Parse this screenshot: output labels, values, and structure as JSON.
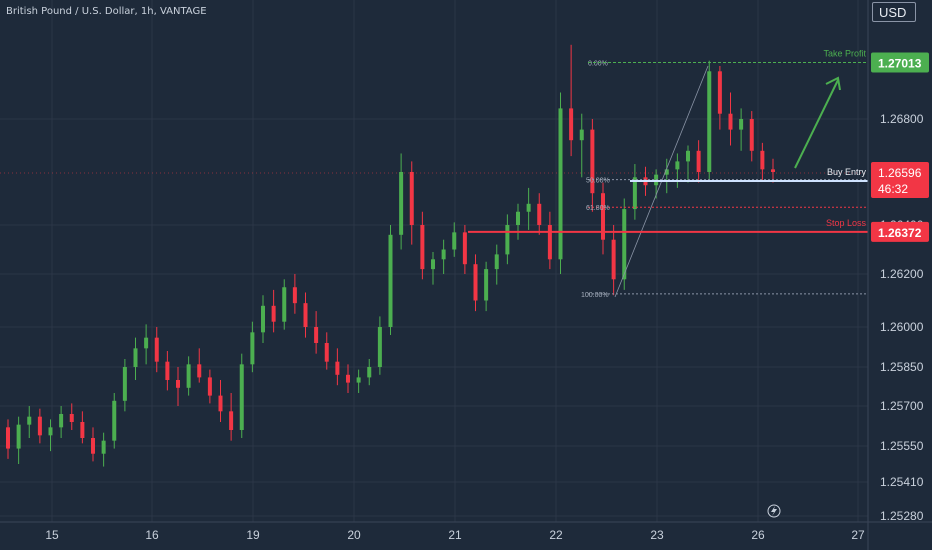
{
  "header": {
    "symbol_title": "British Pound / U.S. Dollar, 1h, VANTAGE",
    "currency": "USD"
  },
  "colors": {
    "background": "#1e2a3a",
    "up": "#4caf50",
    "down": "#f23645",
    "tp": "#4caf50",
    "sl": "#f23645",
    "entry": "#cfe3ff",
    "grid": "#2b3647"
  },
  "icons": {
    "bolt": "lightning-icon"
  },
  "chart_data": {
    "type": "candlestick",
    "x_ticks": [
      "15",
      "16",
      "19",
      "20",
      "21",
      "22",
      "23",
      "26",
      "27"
    ],
    "y_ticks": [
      "1.26800",
      "1.26400",
      "1.26200",
      "1.26000",
      "1.25850",
      "1.25700",
      "1.25550",
      "1.25410",
      "1.25280"
    ],
    "ylim": [
      1.2528,
      1.2712
    ],
    "levels": {
      "take_profit": {
        "label": "Take Profit",
        "price": "1.27013"
      },
      "buy_entry": {
        "label": "Buy Entry",
        "price": "1.26596",
        "countdown": "46:32"
      },
      "stop_loss": {
        "label": "Stop Loss",
        "price": "1.26372"
      }
    },
    "fib": [
      {
        "label": "0.00%",
        "price": 1.27013
      },
      {
        "label": "50.00%",
        "price": 1.26571
      },
      {
        "label": "61.80%",
        "price": 1.26467
      },
      {
        "label": "100.00%",
        "price": 1.26125
      }
    ],
    "candles": [
      [
        1.2562,
        1.2565,
        1.255,
        1.2554
      ],
      [
        1.2554,
        1.2566,
        1.2548,
        1.2563
      ],
      [
        1.2563,
        1.257,
        1.2558,
        1.2566
      ],
      [
        1.2566,
        1.2569,
        1.2556,
        1.2559
      ],
      [
        1.2559,
        1.2565,
        1.2553,
        1.2562
      ],
      [
        1.2562,
        1.257,
        1.2558,
        1.2567
      ],
      [
        1.2567,
        1.2571,
        1.2561,
        1.2564
      ],
      [
        1.2564,
        1.2568,
        1.2556,
        1.2558
      ],
      [
        1.2558,
        1.2562,
        1.2549,
        1.2552
      ],
      [
        1.2552,
        1.256,
        1.2547,
        1.2557
      ],
      [
        1.2557,
        1.2575,
        1.2554,
        1.2572
      ],
      [
        1.2572,
        1.2588,
        1.2568,
        1.2585
      ],
      [
        1.2585,
        1.2596,
        1.258,
        1.2592
      ],
      [
        1.2592,
        1.2601,
        1.2586,
        1.2596
      ],
      [
        1.2596,
        1.26,
        1.2583,
        1.2587
      ],
      [
        1.2587,
        1.2591,
        1.2576,
        1.258
      ],
      [
        1.258,
        1.2585,
        1.257,
        1.2577
      ],
      [
        1.2577,
        1.2589,
        1.2574,
        1.2586
      ],
      [
        1.2586,
        1.2592,
        1.2579,
        1.2581
      ],
      [
        1.2581,
        1.2584,
        1.2571,
        1.2574
      ],
      [
        1.2574,
        1.258,
        1.2564,
        1.2568
      ],
      [
        1.2568,
        1.2575,
        1.2557,
        1.2561
      ],
      [
        1.2561,
        1.259,
        1.2558,
        1.2586
      ],
      [
        1.2586,
        1.2602,
        1.2583,
        1.2598
      ],
      [
        1.2598,
        1.2612,
        1.2594,
        1.2608
      ],
      [
        1.2608,
        1.2614,
        1.2598,
        1.2602
      ],
      [
        1.2602,
        1.2618,
        1.2599,
        1.2615
      ],
      [
        1.2615,
        1.262,
        1.2605,
        1.2609
      ],
      [
        1.2609,
        1.2613,
        1.2596,
        1.26
      ],
      [
        1.26,
        1.2606,
        1.259,
        1.2594
      ],
      [
        1.2594,
        1.2598,
        1.2584,
        1.2587
      ],
      [
        1.2587,
        1.2592,
        1.2578,
        1.2582
      ],
      [
        1.2582,
        1.2586,
        1.2575,
        1.2579
      ],
      [
        1.2579,
        1.2584,
        1.2575,
        1.2581
      ],
      [
        1.2581,
        1.2588,
        1.2578,
        1.2585
      ],
      [
        1.2585,
        1.2604,
        1.2582,
        1.26
      ],
      [
        1.26,
        1.264,
        1.2597,
        1.2636
      ],
      [
        1.2636,
        1.2667,
        1.263,
        1.266
      ],
      [
        1.266,
        1.2664,
        1.2632,
        1.264
      ],
      [
        1.264,
        1.2645,
        1.2618,
        1.2622
      ],
      [
        1.2622,
        1.2629,
        1.2616,
        1.2626
      ],
      [
        1.2626,
        1.2634,
        1.262,
        1.263
      ],
      [
        1.263,
        1.2641,
        1.2627,
        1.2637
      ],
      [
        1.2637,
        1.264,
        1.262,
        1.2624
      ],
      [
        1.2624,
        1.2628,
        1.2606,
        1.261
      ],
      [
        1.261,
        1.2625,
        1.2606,
        1.2622
      ],
      [
        1.2622,
        1.2632,
        1.2616,
        1.2628
      ],
      [
        1.2628,
        1.2644,
        1.2624,
        1.264
      ],
      [
        1.264,
        1.2648,
        1.2634,
        1.2645
      ],
      [
        1.2645,
        1.2654,
        1.2638,
        1.2648
      ],
      [
        1.2648,
        1.2652,
        1.2636,
        1.264
      ],
      [
        1.264,
        1.2645,
        1.2622,
        1.2626
      ],
      [
        1.2626,
        1.269,
        1.262,
        1.2684
      ],
      [
        1.2684,
        1.2708,
        1.2666,
        1.2672
      ],
      [
        1.2672,
        1.2682,
        1.2658,
        1.2676
      ],
      [
        1.2676,
        1.268,
        1.2645,
        1.2652
      ],
      [
        1.2652,
        1.2656,
        1.2628,
        1.2634
      ],
      [
        1.2634,
        1.264,
        1.2612,
        1.2618
      ],
      [
        1.2618,
        1.265,
        1.2614,
        1.2646
      ],
      [
        1.2646,
        1.2663,
        1.2642,
        1.2658
      ],
      [
        1.2658,
        1.2662,
        1.2651,
        1.2655
      ],
      [
        1.2655,
        1.2661,
        1.265,
        1.2659
      ],
      [
        1.2659,
        1.2665,
        1.2652,
        1.2661
      ],
      [
        1.2661,
        1.2667,
        1.2654,
        1.2664
      ],
      [
        1.2664,
        1.267,
        1.2656,
        1.2668
      ],
      [
        1.2668,
        1.2672,
        1.2656,
        1.266
      ],
      [
        1.266,
        1.2702,
        1.2657,
        1.2698
      ],
      [
        1.2698,
        1.27,
        1.2676,
        1.2682
      ],
      [
        1.2682,
        1.269,
        1.267,
        1.2676
      ],
      [
        1.2676,
        1.2684,
        1.2668,
        1.268
      ],
      [
        1.268,
        1.2683,
        1.2664,
        1.2668
      ],
      [
        1.2668,
        1.2671,
        1.2657,
        1.2661
      ],
      [
        1.2661,
        1.2665,
        1.2656,
        1.266
      ]
    ]
  }
}
